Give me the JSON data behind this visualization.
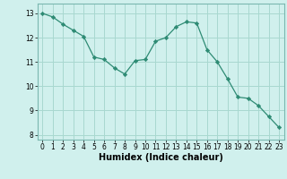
{
  "x": [
    0,
    1,
    2,
    3,
    4,
    5,
    6,
    7,
    8,
    9,
    10,
    11,
    12,
    13,
    14,
    15,
    16,
    17,
    18,
    19,
    20,
    21,
    22,
    23
  ],
  "y": [
    13.0,
    12.85,
    12.55,
    12.3,
    12.05,
    11.2,
    11.1,
    10.75,
    10.5,
    11.05,
    11.1,
    11.85,
    12.0,
    12.45,
    12.65,
    12.6,
    11.5,
    11.0,
    10.3,
    9.55,
    9.5,
    9.2,
    8.75,
    8.3
  ],
  "line_color": "#2e8b74",
  "marker": "D",
  "marker_size": 2.2,
  "bg_color": "#d0f0ed",
  "grid_color": "#a8d8d0",
  "xlabel": "Humidex (Indice chaleur)",
  "xlim": [
    -0.5,
    23.5
  ],
  "ylim": [
    7.8,
    13.4
  ],
  "yticks": [
    8,
    9,
    10,
    11,
    12,
    13
  ],
  "xticks": [
    0,
    1,
    2,
    3,
    4,
    5,
    6,
    7,
    8,
    9,
    10,
    11,
    12,
    13,
    14,
    15,
    16,
    17,
    18,
    19,
    20,
    21,
    22,
    23
  ],
  "tick_fontsize": 5.5,
  "xlabel_fontsize": 7.0,
  "linewidth": 0.9
}
